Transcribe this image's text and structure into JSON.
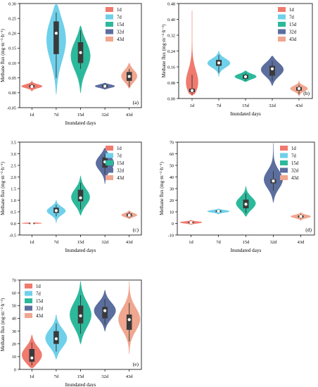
{
  "figure": {
    "legend_labels": [
      "1d",
      "7d",
      "15d",
      "32d",
      "43d"
    ],
    "colors": [
      "#f07a6e",
      "#6fd0ea",
      "#2cb99b",
      "#5b6e9e",
      "#f0a68f"
    ],
    "box_color": "#3a3a3a"
  },
  "chart_data": [
    {
      "type": "violin",
      "panel_label": "(a)",
      "xlabel": "Inundated days",
      "ylabel": "Methane flux (mg·m⁻²·h⁻¹)",
      "categories": [
        "1d",
        "7d",
        "15d",
        "32d",
        "43d"
      ],
      "ylim": [
        -0.05,
        0.3
      ],
      "yticks": [
        -0.05,
        0.0,
        0.05,
        0.1,
        0.15,
        0.2,
        0.25,
        0.3
      ],
      "ytick_labels": [
        "-0.05",
        "0.00",
        "0.05",
        "0.10",
        "0.15",
        "0.20",
        "0.25",
        "0.30"
      ],
      "legend": "top-right",
      "violins": [
        {
          "min": 0.005,
          "max": 0.04,
          "q1": 0.018,
          "median": 0.022,
          "q3": 0.026,
          "whisker": [
            0.015,
            0.03
          ],
          "mean": 0.021,
          "width": 0.42
        },
        {
          "min": -0.005,
          "max": 0.3,
          "q1": 0.13,
          "median": 0.2,
          "q3": 0.24,
          "whisker": [
            0.05,
            0.27
          ],
          "mean": 0.2,
          "width": 0.42
        },
        {
          "min": 0.0,
          "max": 0.225,
          "q1": 0.1,
          "median": 0.13,
          "q3": 0.17,
          "whisker": [
            0.08,
            0.21
          ],
          "mean": 0.135,
          "width": 0.4
        },
        {
          "min": 0.012,
          "max": 0.033,
          "q1": 0.018,
          "median": 0.022,
          "q3": 0.026,
          "whisker": [
            0.015,
            0.03
          ],
          "mean": 0.022,
          "width": 0.4
        },
        {
          "min": 0.015,
          "max": 0.1,
          "q1": 0.04,
          "median": 0.055,
          "q3": 0.07,
          "whisker": [
            0.02,
            0.08
          ],
          "mean": 0.055,
          "width": 0.32
        }
      ]
    },
    {
      "type": "violin",
      "panel_label": "(b)",
      "xlabel": "Inundated days",
      "ylabel": "Methane flux (mg·m⁻²·h⁻¹)",
      "categories": [
        "1d",
        "7d",
        "15d",
        "32d",
        "43d"
      ],
      "ylim": [
        0.0,
        0.48
      ],
      "yticks": [
        0.0,
        0.08,
        0.16,
        0.24,
        0.32,
        0.4,
        0.48
      ],
      "ytick_labels": [
        "0.00",
        "0.08",
        "0.16",
        "0.24",
        "0.32",
        "0.40",
        "0.48"
      ],
      "legend": "top-right",
      "violins": [
        {
          "min": 0.015,
          "max": 0.445,
          "q1": 0.032,
          "median": 0.04,
          "q3": 0.05,
          "whisker": [
            0.02,
            0.12
          ],
          "mean": 0.04,
          "width": 0.45
        },
        {
          "min": 0.11,
          "max": 0.24,
          "q1": 0.165,
          "median": 0.18,
          "q3": 0.195,
          "whisker": [
            0.13,
            0.22
          ],
          "mean": 0.18,
          "width": 0.42
        },
        {
          "min": 0.085,
          "max": 0.14,
          "q1": 0.1,
          "median": 0.11,
          "q3": 0.12,
          "whisker": [
            0.09,
            0.13
          ],
          "mean": 0.11,
          "width": 0.4
        },
        {
          "min": 0.065,
          "max": 0.215,
          "q1": 0.115,
          "median": 0.15,
          "q3": 0.165,
          "whisker": [
            0.09,
            0.19
          ],
          "mean": 0.15,
          "width": 0.42
        },
        {
          "min": 0.01,
          "max": 0.09,
          "q1": 0.04,
          "median": 0.05,
          "q3": 0.058,
          "whisker": [
            0.02,
            0.07
          ],
          "mean": 0.05,
          "width": 0.32
        }
      ]
    },
    {
      "type": "violin",
      "panel_label": "(c)",
      "xlabel": "Inundated days",
      "ylabel": "Methane flux (mg·m⁻²·h⁻¹)",
      "categories": [
        "1d",
        "7d",
        "15d",
        "32d",
        "43d"
      ],
      "ylim": [
        -0.5,
        3.5
      ],
      "yticks": [
        -0.5,
        0.0,
        0.5,
        1.0,
        1.5,
        2.0,
        2.5,
        3.0,
        3.5
      ],
      "ytick_labels": [
        "-0.5",
        "0.0",
        "0.5",
        "1.0",
        "1.5",
        "2.0",
        "2.5",
        "3.0",
        "3.5"
      ],
      "legend": "top-right",
      "violins": [
        {
          "min": -0.02,
          "max": 0.04,
          "q1": 0.0,
          "median": 0.01,
          "q3": 0.02,
          "whisker": [
            -0.01,
            0.03
          ],
          "mean": 0.01,
          "width": 0.4
        },
        {
          "min": 0.0,
          "max": 1.0,
          "q1": 0.45,
          "median": 0.55,
          "q3": 0.68,
          "whisker": [
            0.3,
            0.8
          ],
          "mean": 0.55,
          "width": 0.38
        },
        {
          "min": 0.35,
          "max": 2.05,
          "q1": 0.95,
          "median": 1.1,
          "q3": 1.45,
          "whisker": [
            0.6,
            1.75
          ],
          "mean": 1.1,
          "width": 0.38
        },
        {
          "min": 1.7,
          "max": 3.25,
          "q1": 2.4,
          "median": 2.65,
          "q3": 2.85,
          "whisker": [
            2.1,
            3.0
          ],
          "mean": 2.65,
          "width": 0.38
        },
        {
          "min": 0.2,
          "max": 0.55,
          "q1": 0.3,
          "median": 0.35,
          "q3": 0.42,
          "whisker": [
            0.25,
            0.5
          ],
          "mean": 0.35,
          "width": 0.32
        }
      ]
    },
    {
      "type": "violin",
      "panel_label": "(d)",
      "xlabel": "Inundated days",
      "ylabel": "Methane flux (mg·m⁻²·h⁻¹)",
      "categories": [
        "1d",
        "7d",
        "15d",
        "32d",
        "43d"
      ],
      "ylim": [
        -10,
        70
      ],
      "yticks": [
        -10,
        0,
        10,
        20,
        30,
        40,
        50,
        60,
        70
      ],
      "ytick_labels": [
        "-10",
        "0",
        "10",
        "20",
        "30",
        "40",
        "50",
        "60",
        "70"
      ],
      "legend": "top-right",
      "violins": [
        {
          "min": -1.0,
          "max": 3.0,
          "q1": 0.3,
          "median": 0.8,
          "q3": 1.3,
          "whisker": [
            -0.5,
            2.0
          ],
          "mean": 0.8,
          "width": 0.4
        },
        {
          "min": 8.0,
          "max": 12.5,
          "q1": 9.8,
          "median": 10.5,
          "q3": 11.2,
          "whisker": [
            9.0,
            12.0
          ],
          "mean": 10.5,
          "width": 0.4
        },
        {
          "min": 6.0,
          "max": 32.0,
          "q1": 13.0,
          "median": 16.5,
          "q3": 20.5,
          "whisker": [
            9.0,
            26.0
          ],
          "mean": 16.5,
          "width": 0.36
        },
        {
          "min": 18.0,
          "max": 69.0,
          "q1": 34.5,
          "median": 36.5,
          "q3": 38.0,
          "whisker": [
            28.0,
            45.0
          ],
          "mean": 36.5,
          "width": 0.36
        },
        {
          "min": 2.5,
          "max": 9.5,
          "q1": 5.0,
          "median": 6.0,
          "q3": 6.8,
          "whisker": [
            4.0,
            8.0
          ],
          "mean": 6.0,
          "width": 0.36
        }
      ]
    },
    {
      "type": "violin",
      "panel_label": "(e)",
      "xlabel": "Inundated days",
      "ylabel": "Methane flux (mg·m⁻²·h⁻¹)",
      "categories": [
        "1d",
        "7d",
        "15d",
        "32d",
        "43d"
      ],
      "ylim": [
        0,
        70
      ],
      "yticks": [
        0,
        10,
        20,
        30,
        40,
        50,
        60,
        70
      ],
      "ytick_labels": [
        "0",
        "10",
        "20",
        "30",
        "40",
        "50",
        "60",
        "70"
      ],
      "legend": "top-left",
      "violins": [
        {
          "min": 1.0,
          "max": 27.0,
          "q1": 6.0,
          "median": 9.0,
          "q3": 16.0,
          "whisker": [
            3.0,
            21.0
          ],
          "mean": 9.0,
          "width": 0.44
        },
        {
          "min": 8.0,
          "max": 43.0,
          "q1": 20.0,
          "median": 24.0,
          "q3": 30.0,
          "whisker": [
            14.0,
            36.0
          ],
          "mean": 24.0,
          "width": 0.44
        },
        {
          "min": 20.0,
          "max": 69.0,
          "q1": 36.0,
          "median": 42.0,
          "q3": 50.0,
          "whisker": [
            28.0,
            58.0
          ],
          "mean": 42.0,
          "width": 0.44
        },
        {
          "min": 30.0,
          "max": 62.0,
          "q1": 40.0,
          "median": 46.0,
          "q3": 49.0,
          "whisker": [
            35.0,
            55.0
          ],
          "mean": 46.0,
          "width": 0.44
        },
        {
          "min": 12.0,
          "max": 69.0,
          "q1": 31.0,
          "median": 39.0,
          "q3": 43.0,
          "whisker": [
            22.0,
            52.0
          ],
          "mean": 39.0,
          "width": 0.44
        }
      ]
    }
  ]
}
